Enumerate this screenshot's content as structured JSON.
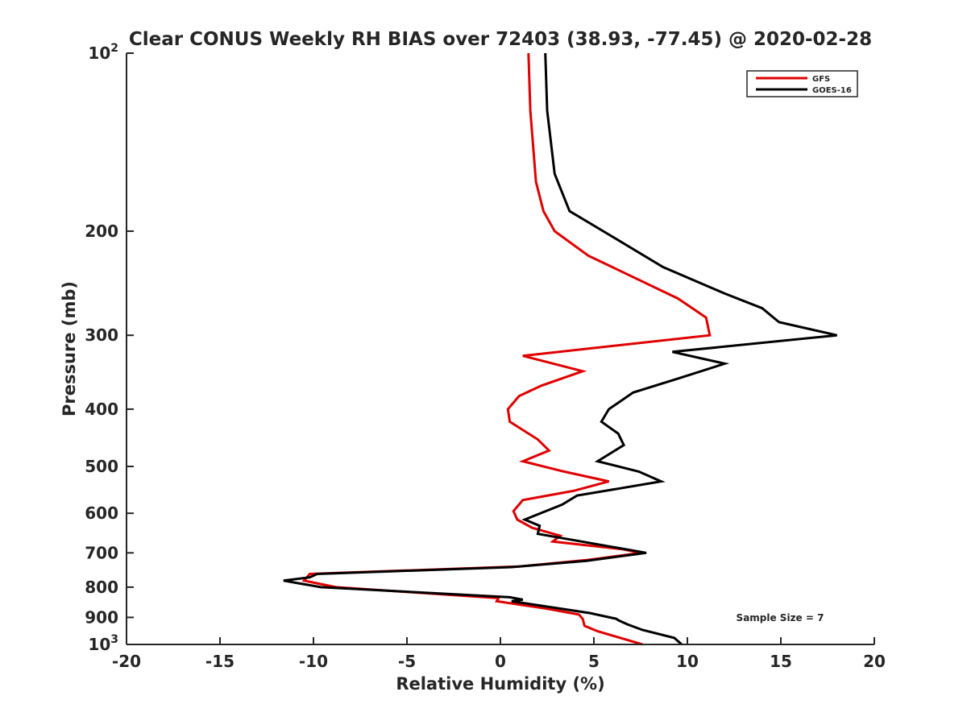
{
  "chart_data": {
    "type": "line",
    "title": "Clear CONUS Weekly RH BIAS over 72403 (38.93, -77.45) @ 2020-02-28",
    "xlabel": "Relative Humidity (%)",
    "ylabel": "Pressure (mb)",
    "xlim": [
      -20,
      20
    ],
    "ylim": [
      100,
      1000
    ],
    "y_scale": "log",
    "y_reversed": true,
    "x_ticks": [
      -20,
      -15,
      -10,
      -5,
      0,
      5,
      10,
      15,
      20
    ],
    "y_ticks": [
      {
        "value": 100,
        "base": "10",
        "exp": "2"
      },
      {
        "value": 200,
        "label": "200"
      },
      {
        "value": 300,
        "label": "300"
      },
      {
        "value": 400,
        "label": "400"
      },
      {
        "value": 500,
        "label": "500"
      },
      {
        "value": 600,
        "label": "600"
      },
      {
        "value": 700,
        "label": "700"
      },
      {
        "value": 800,
        "label": "800"
      },
      {
        "value": 900,
        "label": "900"
      },
      {
        "value": 1000,
        "base": "10",
        "exp": "3"
      }
    ],
    "grid": false,
    "legend_position": "top-right",
    "annotation": "Sample Size = 7",
    "series": [
      {
        "name": "GFS",
        "color": "#e00000",
        "points": [
          [
            1.5,
            100
          ],
          [
            1.6,
            125
          ],
          [
            1.9,
            165
          ],
          [
            2.3,
            185
          ],
          [
            2.9,
            200
          ],
          [
            4.7,
            220
          ],
          [
            9.5,
            260
          ],
          [
            11.0,
            280
          ],
          [
            11.2,
            300
          ],
          [
            1.2,
            325
          ],
          [
            4.4,
            345
          ],
          [
            2.2,
            365
          ],
          [
            1.0,
            380
          ],
          [
            0.4,
            400
          ],
          [
            0.5,
            420
          ],
          [
            2.0,
            450
          ],
          [
            2.6,
            470
          ],
          [
            1.2,
            490
          ],
          [
            3.4,
            510
          ],
          [
            5.8,
            530
          ],
          [
            3.9,
            550
          ],
          [
            1.2,
            570
          ],
          [
            0.7,
            595
          ],
          [
            0.9,
            615
          ],
          [
            1.7,
            635
          ],
          [
            3.2,
            655
          ],
          [
            2.8,
            670
          ],
          [
            6.5,
            690
          ],
          [
            7.5,
            700
          ],
          [
            4.6,
            720
          ],
          [
            1.0,
            738
          ],
          [
            -10.2,
            760
          ],
          [
            -10.5,
            780
          ],
          [
            -8.8,
            800
          ],
          [
            -0.1,
            835
          ],
          [
            -0.2,
            845
          ],
          [
            2.5,
            870
          ],
          [
            4.2,
            890
          ],
          [
            4.4,
            905
          ],
          [
            4.5,
            930
          ],
          [
            5.2,
            950
          ],
          [
            7.6,
            1000
          ]
        ]
      },
      {
        "name": "GOES-16",
        "color": "#000000",
        "points": [
          [
            2.4,
            100
          ],
          [
            2.5,
            125
          ],
          [
            2.9,
            160
          ],
          [
            3.7,
            185
          ],
          [
            5.5,
            200
          ],
          [
            8.7,
            230
          ],
          [
            12.0,
            255
          ],
          [
            14.0,
            270
          ],
          [
            14.9,
            285
          ],
          [
            18.0,
            300
          ],
          [
            9.2,
            320
          ],
          [
            12.0,
            335
          ],
          [
            9.5,
            355
          ],
          [
            7.1,
            375
          ],
          [
            5.8,
            400
          ],
          [
            5.4,
            420
          ],
          [
            6.3,
            440
          ],
          [
            6.6,
            460
          ],
          [
            5.2,
            490
          ],
          [
            7.4,
            510
          ],
          [
            8.6,
            530
          ],
          [
            4.1,
            560
          ],
          [
            3.3,
            580
          ],
          [
            1.3,
            615
          ],
          [
            2.1,
            630
          ],
          [
            2.0,
            650
          ],
          [
            7.8,
            700
          ],
          [
            4.6,
            722
          ],
          [
            0.6,
            740
          ],
          [
            -9.8,
            760
          ],
          [
            -10.2,
            770
          ],
          [
            -11.6,
            780
          ],
          [
            -9.6,
            800
          ],
          [
            0.5,
            832
          ],
          [
            1.2,
            840
          ],
          [
            0.6,
            845
          ],
          [
            4.8,
            885
          ],
          [
            6.2,
            905
          ],
          [
            6.3,
            910
          ],
          [
            6.8,
            925
          ],
          [
            7.6,
            945
          ],
          [
            9.3,
            975
          ],
          [
            9.7,
            1000
          ]
        ]
      }
    ]
  }
}
